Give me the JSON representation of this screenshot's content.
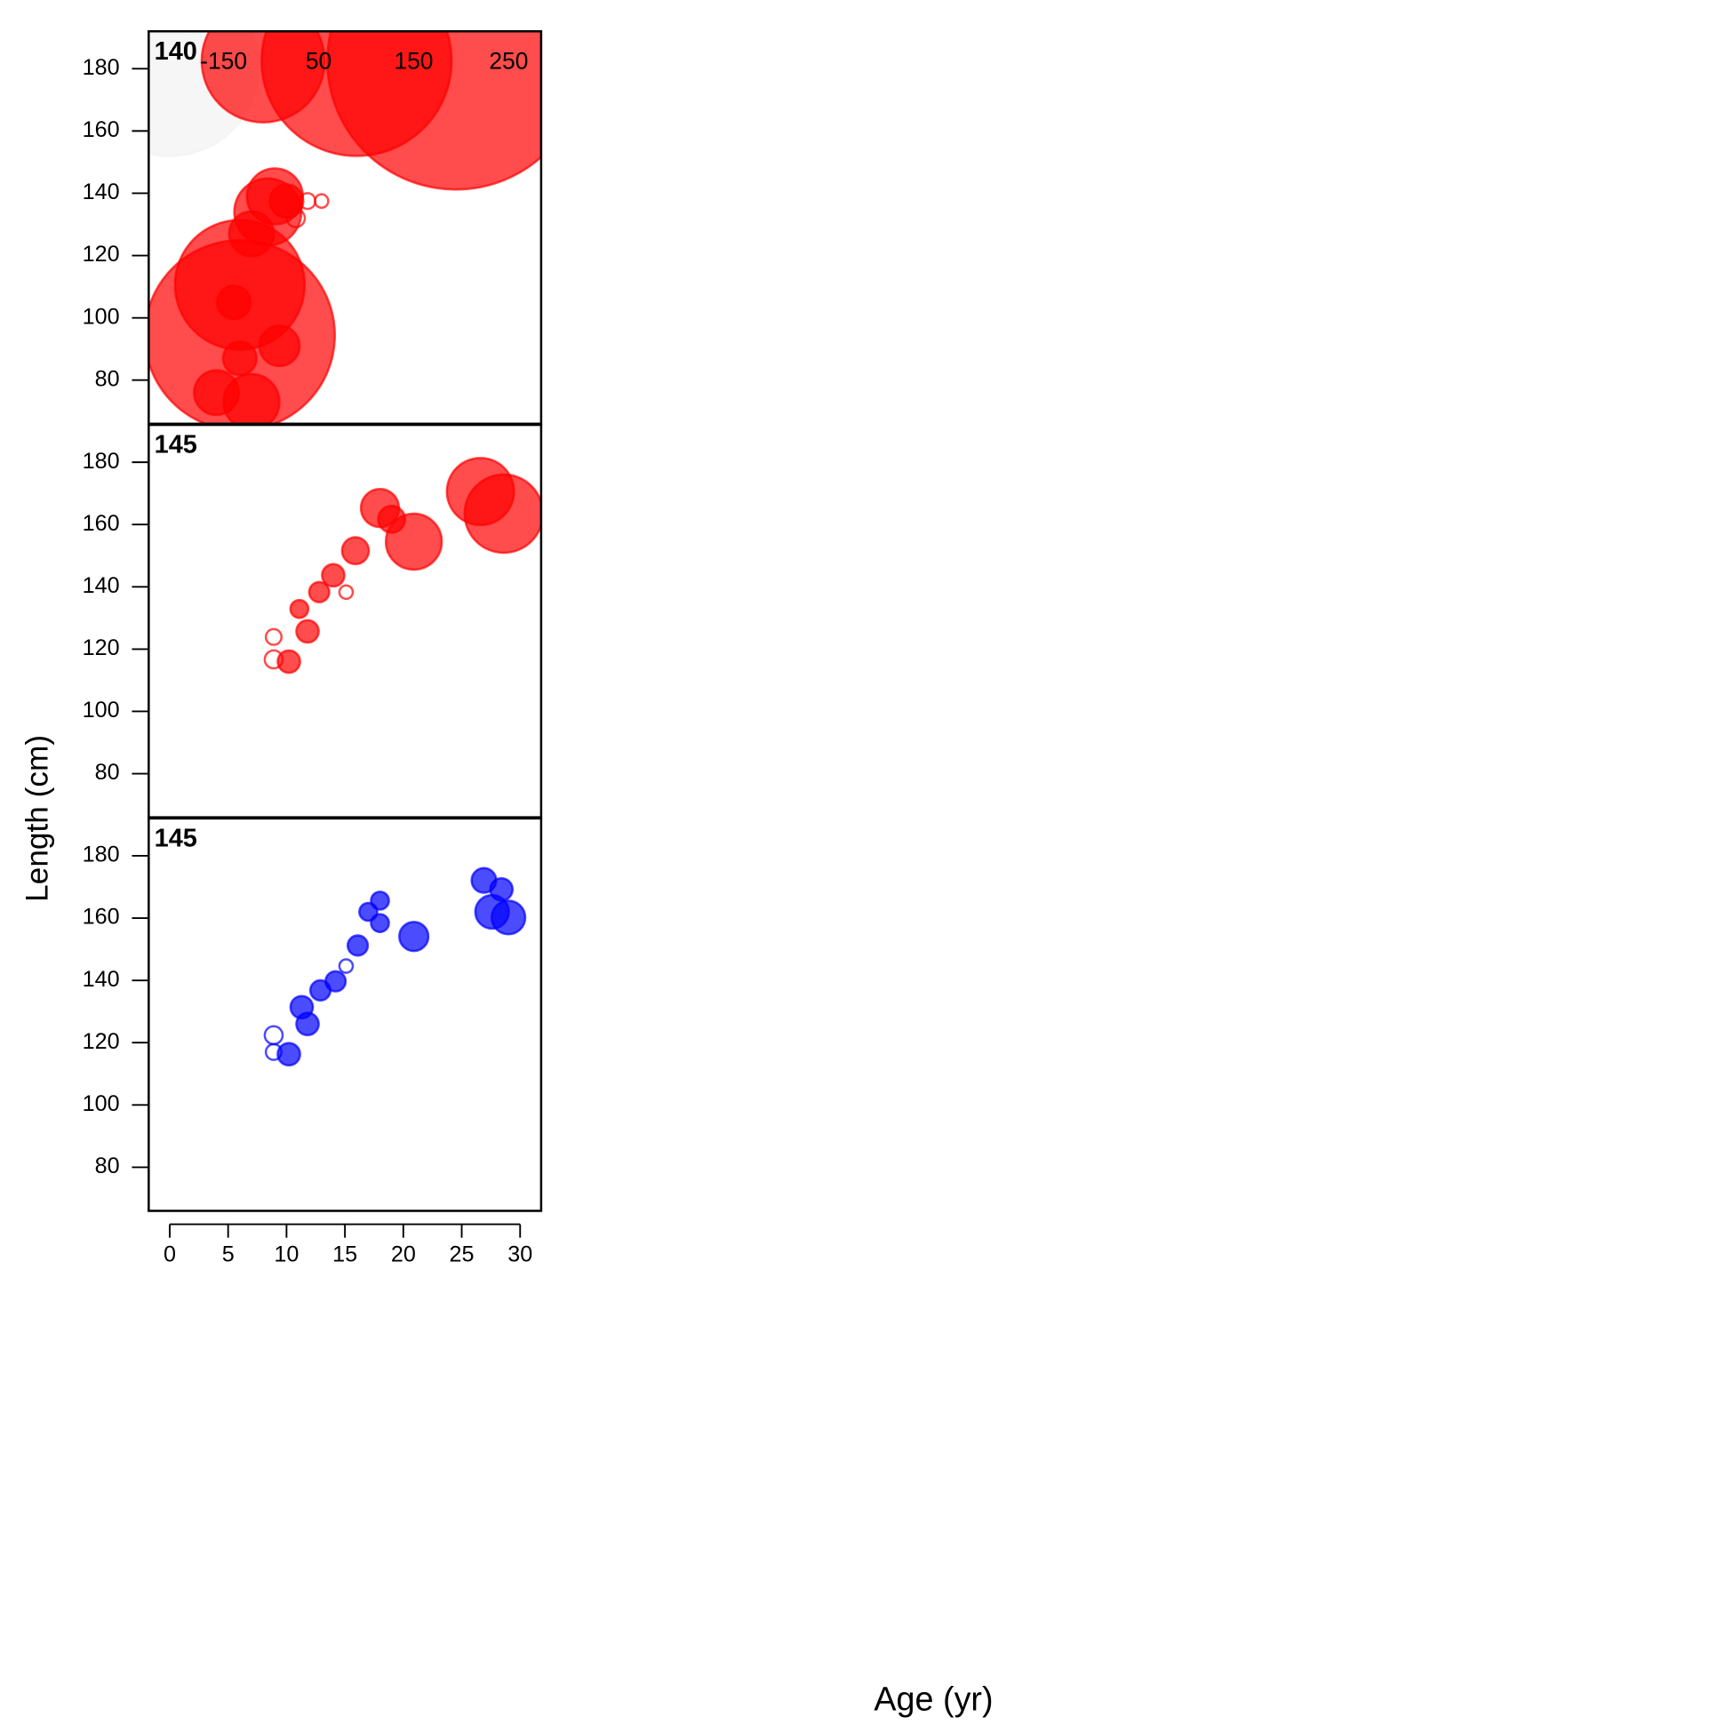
{
  "x_label": "Age (yr)",
  "y_label": "Length (cm)",
  "chart_data": [
    {
      "type": "bubble",
      "title": "140",
      "xlim": [
        -1.8,
        31.8
      ],
      "ylim": [
        66,
        192
      ],
      "yticks": [
        80,
        100,
        120,
        140,
        160,
        180
      ],
      "annotations": [
        "-150",
        "50",
        "150",
        "250"
      ],
      "series": [
        {
          "color": "#f2f2f2",
          "filled": true,
          "x": [
            0
          ],
          "values": [
            180.7
          ],
          "size": [
            80
          ]
        },
        {
          "color": "#ff0000",
          "filled": true,
          "x": [
            8,
            16,
            24.5
          ],
          "values": [
            182.5,
            182.5,
            182.5
          ],
          "size": [
            55,
            85,
            115
          ]
        },
        {
          "color": "#ff0000",
          "filled": true,
          "x": [
            6,
            6,
            8.4,
            9,
            7,
            5.5,
            4,
            7,
            9.4,
            6,
            10
          ],
          "values": [
            94.4,
            110.6,
            134,
            139,
            127,
            105,
            76,
            73,
            91,
            87,
            137.5
          ],
          "size": [
            85,
            58,
            30,
            25,
            20,
            15,
            20,
            25,
            18,
            15,
            15
          ]
        },
        {
          "color": "#ff0000",
          "filled": false,
          "x": [
            10.8,
            11.8,
            13
          ],
          "values": [
            132,
            137.5,
            137.5
          ],
          "size": [
            8,
            7,
            6
          ]
        }
      ]
    },
    {
      "type": "bubble",
      "title": "145",
      "xlim": [
        -1.8,
        31.8
      ],
      "ylim": [
        66,
        192
      ],
      "yticks": [
        80,
        100,
        120,
        140,
        160,
        180
      ],
      "series": [
        {
          "color": "#ff0000",
          "filled": true,
          "x": [
            28.6,
            26.6,
            20.9,
            18,
            19,
            15.9,
            14,
            12.8,
            11.8,
            11.1,
            10.2
          ],
          "values": [
            163.5,
            170.6,
            154.5,
            165.3,
            161.7,
            151.6,
            143.7,
            138.3,
            125.7,
            132.9,
            116
          ],
          "size": [
            35,
            30,
            25,
            17,
            12,
            12,
            10,
            9,
            10,
            8,
            10
          ]
        },
        {
          "color": "#ff0000",
          "filled": false,
          "x": [
            8.9,
            8.9,
            15.1
          ],
          "values": [
            123.9,
            116.7,
            138.3
          ],
          "size": [
            7,
            8,
            6
          ]
        }
      ]
    },
    {
      "type": "bubble",
      "title": "145",
      "xlim": [
        -1.8,
        31.8
      ],
      "ylim": [
        66,
        192
      ],
      "yticks": [
        80,
        100,
        120,
        140,
        160,
        180
      ],
      "xticks": [
        0,
        5,
        10,
        15,
        20,
        25,
        30
      ],
      "series": [
        {
          "color": "#0000ff",
          "filled": true,
          "x": [
            29,
            27.6,
            26.9,
            28.4,
            20.9,
            16.1,
            18,
            17,
            18,
            14.2,
            12.9,
            11.8,
            11.3,
            10.2
          ],
          "values": [
            160.2,
            162,
            172.1,
            169.2,
            154.1,
            151.2,
            165.6,
            162,
            158.4,
            139.7,
            136.8,
            126,
            131.4,
            116.3
          ],
          "size": [
            15,
            15,
            11,
            10,
            13,
            9,
            8,
            8,
            8,
            9,
            9,
            10,
            10,
            10
          ]
        },
        {
          "color": "#0000ff",
          "filled": false,
          "x": [
            8.9,
            8.9,
            15.1
          ],
          "values": [
            122.4,
            117,
            144.6
          ],
          "size": [
            8,
            7,
            6
          ]
        }
      ]
    }
  ]
}
